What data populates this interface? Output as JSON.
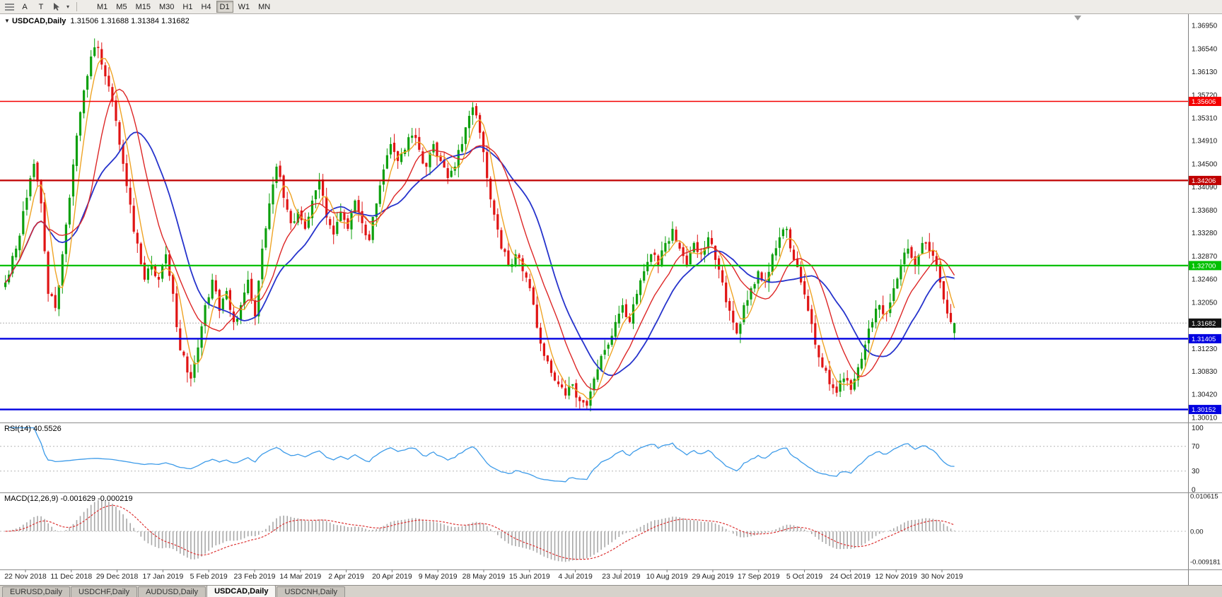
{
  "toolbar": {
    "a_label": "A",
    "t_label": "T",
    "caret_glyph": "▾",
    "timeframes": [
      "M1",
      "M5",
      "M15",
      "M30",
      "H1",
      "H4",
      "D1",
      "W1",
      "MN"
    ],
    "active_timeframe": "D1"
  },
  "header": {
    "collapse_icon": "▼",
    "symbol": "USDCAD,Daily",
    "open": "1.31506",
    "high": "1.31688",
    "low": "1.31384",
    "close": "1.31682"
  },
  "indicator_labels": {
    "rsi": "RSI(14)",
    "rsi_value": "40.5526",
    "macd": "MACD(12,26,9)",
    "macd_value": "-0.001629",
    "macd_signal": "-0.000219"
  },
  "tabs": {
    "items": [
      "EURUSD,Daily",
      "USDCHF,Daily",
      "AUDUSD,Daily",
      "USDCAD,Daily",
      "USDCNH,Daily"
    ],
    "active": "USDCAD,Daily"
  },
  "chart_data": {
    "type": "candlestick",
    "symbol": "USDCAD",
    "timeframe": "Daily",
    "bar_count": 267,
    "colors": {
      "up": "#0ea00e",
      "down": "#e01414",
      "ma_fast": "#efa425",
      "ma_mid": "#dd2727",
      "ma_slow": "#2633cc",
      "rsi": "#3d9be9",
      "macd_bar": "#a8a8a8",
      "macd_signal": "#dd3333"
    },
    "price_axis_labels": [
      "1.36950",
      "1.36540",
      "1.36130",
      "1.35720",
      "1.35310",
      "1.34910",
      "1.34500",
      "1.34090",
      "1.33680",
      "1.33280",
      "1.32870",
      "1.32460",
      "1.32050",
      "1.31640",
      "1.31230",
      "1.30830",
      "1.30420",
      "1.30010"
    ],
    "date_labels": [
      "22 Nov 2018",
      "11 Dec 2018",
      "29 Dec 2018",
      "17 Jan 2019",
      "5 Feb 2019",
      "23 Feb 2019",
      "14 Mar 2019",
      "2 Apr 2019",
      "20 Apr 2019",
      "9 May 2019",
      "28 May 2019",
      "15 Jun 2019",
      "4 Jul 2019",
      "23 Jul 2019",
      "10 Aug 2019",
      "29 Aug 2019",
      "17 Sep 2019",
      "5 Oct 2019",
      "24 Oct 2019",
      "12 Nov 2019",
      "30 Nov 2019"
    ],
    "levels": [
      {
        "value": 1.35606,
        "label": "1.35606",
        "color": "#f40000",
        "width": 1.6
      },
      {
        "value": 1.34206,
        "label": "1.34206",
        "color": "#c00000",
        "width": 2.2
      },
      {
        "value": 1.327,
        "label": "1.32700",
        "color": "#00c000",
        "width": 2.2
      },
      {
        "value": 1.31405,
        "label": "1.31405",
        "color": "#0000e0",
        "width": 2.4
      },
      {
        "value": 1.30152,
        "label": "1.30152",
        "color": "#0000e0",
        "width": 2.4
      }
    ],
    "current_price": {
      "value": 1.31682,
      "label": "1.31682",
      "color": "#111111"
    },
    "rsi": {
      "period": 14,
      "last": 40.5526,
      "guides": [
        70,
        30
      ],
      "axis": [
        {
          "t": "100",
          "v": 100
        },
        {
          "t": "70",
          "v": 70
        },
        {
          "t": "30",
          "v": 30
        },
        {
          "t": "0",
          "v": 0
        }
      ]
    },
    "macd": {
      "fast": 12,
      "slow": 26,
      "signal": 9,
      "last": -0.001629,
      "last_signal": -0.000219,
      "axis": [
        {
          "t": "0.010615",
          "v": 0.010615
        },
        {
          "t": "0.00",
          "v": 0
        },
        {
          "t": "-0.009181",
          "v": -0.009181
        }
      ]
    },
    "last_candle": {
      "o": 1.31506,
      "h": 1.31688,
      "l": 1.31384,
      "c": 1.31682
    },
    "close_anchors": [
      [
        0,
        1.324
      ],
      [
        3,
        1.33
      ],
      [
        6,
        1.339
      ],
      [
        8,
        1.345
      ],
      [
        10,
        1.338
      ],
      [
        12,
        1.322
      ],
      [
        14,
        1.3195
      ],
      [
        16,
        1.329
      ],
      [
        18,
        1.339
      ],
      [
        20,
        1.35
      ],
      [
        22,
        1.358
      ],
      [
        24,
        1.364
      ],
      [
        26,
        1.3655
      ],
      [
        28,
        1.3605
      ],
      [
        30,
        1.356
      ],
      [
        33,
        1.345
      ],
      [
        36,
        1.333
      ],
      [
        39,
        1.3245
      ],
      [
        41,
        1.327
      ],
      [
        43,
        1.3245
      ],
      [
        45,
        1.329
      ],
      [
        47,
        1.322
      ],
      [
        49,
        1.312
      ],
      [
        52,
        1.307
      ],
      [
        54,
        1.3125
      ],
      [
        56,
        1.32
      ],
      [
        58,
        1.3245
      ],
      [
        60,
        1.319
      ],
      [
        62,
        1.3225
      ],
      [
        64,
        1.317
      ],
      [
        66,
        1.32
      ],
      [
        68,
        1.3245
      ],
      [
        70,
        1.318
      ],
      [
        72,
        1.33
      ],
      [
        74,
        1.338
      ],
      [
        76,
        1.3445
      ],
      [
        78,
        1.339
      ],
      [
        80,
        1.3345
      ],
      [
        82,
        1.3365
      ],
      [
        84,
        1.3335
      ],
      [
        86,
        1.3385
      ],
      [
        88,
        1.342
      ],
      [
        90,
        1.3355
      ],
      [
        92,
        1.3325
      ],
      [
        94,
        1.3365
      ],
      [
        96,
        1.3335
      ],
      [
        98,
        1.3385
      ],
      [
        100,
        1.3345
      ],
      [
        102,
        1.3315
      ],
      [
        104,
        1.338
      ],
      [
        106,
        1.344
      ],
      [
        108,
        1.3485
      ],
      [
        110,
        1.3455
      ],
      [
        112,
        1.3475
      ],
      [
        114,
        1.35
      ],
      [
        116,
        1.3475
      ],
      [
        118,
        1.3445
      ],
      [
        120,
        1.3485
      ],
      [
        122,
        1.3455
      ],
      [
        124,
        1.3425
      ],
      [
        126,
        1.3445
      ],
      [
        128,
        1.3485
      ],
      [
        130,
        1.3535
      ],
      [
        131,
        1.355
      ],
      [
        133,
        1.3505
      ],
      [
        135,
        1.3425
      ],
      [
        137,
        1.336
      ],
      [
        139,
        1.33
      ],
      [
        141,
        1.327
      ],
      [
        143,
        1.329
      ],
      [
        145,
        1.326
      ],
      [
        147,
        1.323
      ],
      [
        149,
        1.316
      ],
      [
        151,
        1.311
      ],
      [
        153,
        1.308
      ],
      [
        155,
        1.306
      ],
      [
        157,
        1.304
      ],
      [
        159,
        1.306
      ],
      [
        161,
        1.303
      ],
      [
        163,
        1.3022
      ],
      [
        165,
        1.307
      ],
      [
        167,
        1.311
      ],
      [
        169,
        1.313
      ],
      [
        171,
        1.317
      ],
      [
        173,
        1.32
      ],
      [
        175,
        1.317
      ],
      [
        177,
        1.322
      ],
      [
        179,
        1.326
      ],
      [
        181,
        1.329
      ],
      [
        183,
        1.327
      ],
      [
        185,
        1.331
      ],
      [
        187,
        1.3335
      ],
      [
        189,
        1.33
      ],
      [
        191,
        1.327
      ],
      [
        193,
        1.331
      ],
      [
        195,
        1.329
      ],
      [
        197,
        1.332
      ],
      [
        199,
        1.328
      ],
      [
        201,
        1.324
      ],
      [
        203,
        1.319
      ],
      [
        205,
        1.315
      ],
      [
        207,
        1.32
      ],
      [
        209,
        1.323
      ],
      [
        211,
        1.326
      ],
      [
        213,
        1.324
      ],
      [
        215,
        1.329
      ],
      [
        217,
        1.332
      ],
      [
        219,
        1.3335
      ],
      [
        221,
        1.328
      ],
      [
        223,
        1.324
      ],
      [
        225,
        1.319
      ],
      [
        227,
        1.313
      ],
      [
        229,
        1.309
      ],
      [
        231,
        1.306
      ],
      [
        233,
        1.3045
      ],
      [
        235,
        1.307
      ],
      [
        237,
        1.305
      ],
      [
        239,
        1.309
      ],
      [
        241,
        1.313
      ],
      [
        243,
        1.317
      ],
      [
        245,
        1.32
      ],
      [
        247,
        1.3185
      ],
      [
        249,
        1.323
      ],
      [
        251,
        1.327
      ],
      [
        253,
        1.33
      ],
      [
        255,
        1.327
      ],
      [
        257,
        1.331
      ],
      [
        259,
        1.3295
      ],
      [
        261,
        1.327
      ],
      [
        262,
        1.324
      ],
      [
        263,
        1.321
      ],
      [
        264,
        1.3185
      ],
      [
        265,
        1.317
      ],
      [
        266,
        1.31682
      ]
    ],
    "forced_extremes": [
      {
        "i": 8,
        "h": 1.3458
      },
      {
        "i": 25,
        "h": 1.3672
      },
      {
        "i": 26,
        "h": 1.3668
      },
      {
        "i": 131,
        "h": 1.3559
      },
      {
        "i": 52,
        "l": 1.3056
      },
      {
        "i": 162,
        "l": 1.3019
      },
      {
        "i": 163,
        "l": 1.3016
      },
      {
        "i": 233,
        "l": 1.3038
      },
      {
        "i": 237,
        "l": 1.3042
      }
    ]
  }
}
